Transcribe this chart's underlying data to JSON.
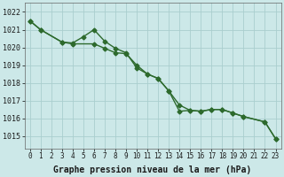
{
  "line1_x": [
    0,
    1,
    3,
    4,
    5,
    6,
    7,
    8,
    9,
    10,
    11,
    12,
    13,
    14,
    15,
    16,
    17,
    18,
    19,
    20,
    22,
    23
  ],
  "line1_y": [
    1021.5,
    1021.0,
    1020.3,
    1020.25,
    1020.6,
    1021.0,
    1020.35,
    1019.95,
    1019.7,
    1018.85,
    1018.5,
    1018.25,
    1017.55,
    1016.4,
    1016.45,
    1016.4,
    1016.5,
    1016.5,
    1016.3,
    1016.1,
    1015.8,
    1014.85
  ],
  "line2_x": [
    0,
    1,
    3,
    4,
    6,
    7,
    8,
    9,
    10,
    11,
    12,
    13,
    14,
    15,
    16,
    17,
    18,
    19,
    20,
    22,
    23
  ],
  "line2_y": [
    1021.5,
    1021.0,
    1020.3,
    1020.2,
    1020.2,
    1019.95,
    1019.7,
    1019.65,
    1019.0,
    1018.5,
    1018.25,
    1017.55,
    1016.75,
    1016.45,
    1016.4,
    1016.5,
    1016.5,
    1016.3,
    1016.1,
    1015.8,
    1014.85
  ],
  "line_color": "#2d6a2d",
  "background_color": "#cce8e8",
  "grid_color": "#aacece",
  "ylabel_values": [
    1015,
    1016,
    1017,
    1018,
    1019,
    1020,
    1021,
    1022
  ],
  "ylim": [
    1014.3,
    1022.5
  ],
  "xlim": [
    -0.5,
    23.5
  ],
  "xlabel": "Graphe pression niveau de la mer (hPa)",
  "xtick_labels": [
    "0",
    "1",
    "2",
    "3",
    "4",
    "5",
    "6",
    "7",
    "8",
    "9",
    "10",
    "11",
    "12",
    "13",
    "14",
    "15",
    "16",
    "17",
    "18",
    "19",
    "20",
    "21",
    "22",
    "23"
  ],
  "marker": "D",
  "markersize": 2.5,
  "linewidth": 1.0,
  "tick_fontsize": 6.0,
  "xlabel_fontsize": 7.0
}
